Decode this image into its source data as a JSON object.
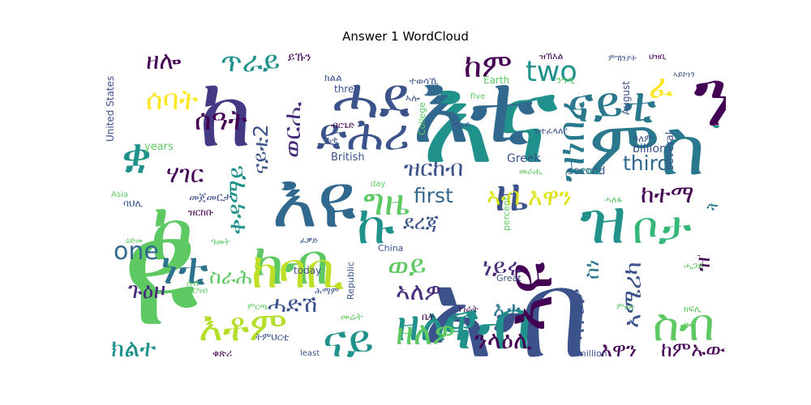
{
  "chart_data": {
    "type": "wordcloud",
    "title": "Answer 1 WordCloud",
    "colormap": "viridis",
    "words": [
      {
        "text": "ዩ",
        "color": "#5ec962"
      },
      {
        "text": "እና",
        "color": "#21918c"
      },
      {
        "text": "እቲ",
        "color": "#31688e"
      },
      {
        "text": "ኣብ",
        "color": "#3b528b"
      },
      {
        "text": "ከ",
        "color": "#443983"
      },
      {
        "text": "ምስ",
        "color": "#2a788e"
      },
      {
        "text": "እዩ",
        "color": "#31688e"
      },
      {
        "text": "ናብ",
        "color": "#21918c"
      },
      {
        "text": "ዝ",
        "color": "#21918c"
      },
      {
        "text": "ኮ",
        "color": "#5ec962"
      },
      {
        "text": "ን",
        "color": "#440154"
      },
      {
        "text": "ሓደ",
        "color": "#3b528b"
      },
      {
        "text": "ካብ",
        "color": "#5ec962"
      },
      {
        "text": "ኣዩ",
        "color": "#440154"
      },
      {
        "text": "ናይቲ",
        "color": "#2a788e"
      },
      {
        "text": "ድሕሪ",
        "color": "#3b528b"
      },
      {
        "text": "ዘለዋ",
        "color": "#21918c"
      },
      {
        "text": "ዜ",
        "color": "#3b528b"
      },
      {
        "text": "ቦታ",
        "color": "#35b779"
      },
      {
        "text": "ኩ",
        "color": "#21918c"
      },
      {
        "text": "ከም",
        "color": "#440154"
      },
      {
        "text": "two",
        "color": "#21918c"
      },
      {
        "text": "ዝነበረ",
        "color": "#2a788e"
      },
      {
        "text": "መጠን",
        "color": "#21918c"
      },
      {
        "text": "ስብ",
        "color": "#5ec962"
      },
      {
        "text": "ሰዓት",
        "color": "#440154"
      },
      {
        "text": "ሰባት",
        "color": "#fde725"
      },
      {
        "text": "ዘሎ",
        "color": "#440154"
      },
      {
        "text": "ጥራይ",
        "color": "#21918c"
      },
      {
        "text": "ቋ",
        "color": "#21918c"
      },
      {
        "text": "ሃገር",
        "color": "#440154"
      },
      {
        "text": "ወርሒ",
        "color": "#472d7b"
      },
      {
        "text": "ፈ",
        "color": "#fde725"
      },
      {
        "text": "ቀዳማይ",
        "color": "#21918c"
      },
      {
        "text": "ዝርከብ",
        "color": "#3b528b"
      },
      {
        "text": "first",
        "color": "#31688e"
      },
      {
        "text": "third",
        "color": "#31688e"
      },
      {
        "text": "ከተማ",
        "color": "#440154"
      },
      {
        "text": "ኣብ እዋን",
        "color": "#dde318"
      },
      {
        "text": "ደረጃ",
        "color": "#3b528b"
      },
      {
        "text": "one",
        "color": "#31688e"
      },
      {
        "text": "ነቲ",
        "color": "#2c728e"
      },
      {
        "text": "ከባቢ",
        "color": "#bddf26"
      },
      {
        "text": "ወይ",
        "color": "#5ec962"
      },
      {
        "text": "ነይሩ",
        "color": "#472d7b"
      },
      {
        "text": "ጉዕዞ",
        "color": "#472d7b"
      },
      {
        "text": "ስራሕ",
        "color": "#5ec962"
      },
      {
        "text": "ሓድሽ",
        "color": "#3b528b"
      },
      {
        "text": "እቶም",
        "color": "#b5de2b"
      },
      {
        "text": "ዘለዎ",
        "color": "#5ec962"
      },
      {
        "text": "ንላዕሊ",
        "color": "#440154"
      },
      {
        "text": "ኣለዎ",
        "color": "#472d7b"
      },
      {
        "text": "እታ",
        "color": "#2a788e"
      },
      {
        "text": "ስነ",
        "color": "#2a788e"
      },
      {
        "text": "ኣሜሪካ",
        "color": "#3b528b"
      },
      {
        "text": "ከምኡውን",
        "color": "#440154"
      },
      {
        "text": "እዋን",
        "color": "#440154"
      },
      {
        "text": "ክልተ",
        "color": "#21918c"
      },
      {
        "text": "ናይ",
        "color": "#21918c"
      },
      {
        "text": "ግዜ",
        "color": "#5ec962"
      },
      {
        "text": "ናይቲ2",
        "color": "#3b528b"
      },
      {
        "text": "ኣፍሪቃ",
        "color": "#3b528b"
      },
      {
        "text": "ትግራይ",
        "color": "#2a788e"
      },
      {
        "text": "ዝኸፍ",
        "color": "#440154"
      },
      {
        "text": "Greek",
        "color": "#3b528b"
      },
      {
        "text": "billion",
        "color": "#3b528b"
      },
      {
        "text": "several",
        "color": "#3b528b"
      },
      {
        "text": "second",
        "color": "#3b528b"
      },
      {
        "text": "British",
        "color": "#3b528b"
      },
      {
        "text": "United States",
        "color": "#3b528b"
      },
      {
        "text": "years",
        "color": "#5ec962"
      },
      {
        "text": "August",
        "color": "#3b528b"
      },
      {
        "text": "Earth",
        "color": "#5ec962"
      },
      {
        "text": "College",
        "color": "#5ec962"
      },
      {
        "text": "three",
        "color": "#3b528b"
      },
      {
        "text": "five",
        "color": "#5ec962"
      },
      {
        "text": "today",
        "color": "#3b528b"
      },
      {
        "text": "China",
        "color": "#3b528b"
      },
      {
        "text": "Republic",
        "color": "#3b528b"
      },
      {
        "text": "Great",
        "color": "#3b528b"
      },
      {
        "text": "least",
        "color": "#3b528b"
      },
      {
        "text": "million",
        "color": "#3b528b"
      },
      {
        "text": "percent",
        "color": "#5ec962"
      },
      {
        "text": "day",
        "color": "#5ec962"
      },
      {
        "text": "Asia",
        "color": "#5ec962"
      },
      {
        "text": "መንግስቲ",
        "color": "#21918c"
      },
      {
        "text": "ይኹን",
        "color": "#440154"
      },
      {
        "text": "ዝተፈላለየ",
        "color": "#3b528b"
      },
      {
        "text": "ዝኽእል",
        "color": "#440154"
      },
      {
        "text": "ተወሳኺ",
        "color": "#3b528b"
      },
      {
        "text": "ኣሎ",
        "color": "#3b528b"
      },
      {
        "text": "ክልል",
        "color": "#3b528b"
      },
      {
        "text": "መራሒ",
        "color": "#5ec962"
      },
      {
        "text": "ዓለም",
        "color": "#3b528b"
      },
      {
        "text": "ሓለፋ",
        "color": "#5ec962"
      },
      {
        "text": "መጀመርታ",
        "color": "#3b528b"
      },
      {
        "text": "ዝርከቡ",
        "color": "#440154"
      },
      {
        "text": "ባህሊ",
        "color": "#3b528b"
      },
      {
        "text": "ምሩጽ",
        "color": "#5ec962"
      },
      {
        "text": "ቁጽሪ",
        "color": "#440154"
      },
      {
        "text": "ትምህርቲ",
        "color": "#3b528b"
      },
      {
        "text": "መሬት",
        "color": "#5ec962"
      },
      {
        "text": "ቤት",
        "color": "#440154"
      },
      {
        "text": "ሕማም",
        "color": "#3b528b"
      },
      {
        "text": "ሓጋይ",
        "color": "#5ec962"
      },
      {
        "text": "ነገራት",
        "color": "#440154"
      },
      {
        "text": "ዓመት",
        "color": "#5ec962"
      },
      {
        "text": "ሰብ",
        "color": "#5ec962"
      },
      {
        "text": "ምርካብ",
        "color": "#5ec962"
      },
      {
        "text": "ብርጌድ",
        "color": "#440154"
      },
      {
        "text": "ኣይኮነን",
        "color": "#3b528b"
      },
      {
        "text": "ሓቂ",
        "color": "#3b528b"
      },
      {
        "text": "ንግዲ",
        "color": "#5ec962"
      },
      {
        "text": "ፍሉይ",
        "color": "#3b528b"
      },
      {
        "text": "ዓዲ",
        "color": "#5ec962"
      },
      {
        "text": "ህዝቢ",
        "color": "#440154"
      },
      {
        "text": "ምኽንያት",
        "color": "#3b528b"
      },
      {
        "text": "ምርጫ",
        "color": "#5ec962"
      },
      {
        "text": "ፈቓድ",
        "color": "#3b528b"
      },
      {
        "text": "ክፍሊ",
        "color": "#5ec962"
      },
      {
        "text": "ሓምሳ",
        "color": "#3b528b"
      },
      {
        "text": "ዕድመ",
        "color": "#5ec962"
      }
    ]
  }
}
